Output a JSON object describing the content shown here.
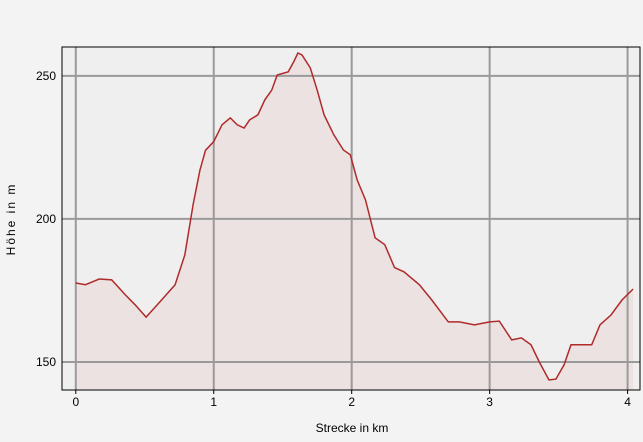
{
  "chart_data": {
    "type": "area",
    "x_label": "Strecke in km",
    "y_label": "Höhe in m",
    "x": [
      0,
      0.07,
      0.17,
      0.26,
      0.36,
      0.43,
      0.51,
      0.61,
      0.72,
      0.79,
      0.85,
      0.9,
      0.94,
      1.0,
      1.06,
      1.12,
      1.17,
      1.22,
      1.26,
      1.32,
      1.37,
      1.42,
      1.46,
      1.54,
      1.58,
      1.61,
      1.64,
      1.7,
      1.75,
      1.8,
      1.87,
      1.94,
      1.99,
      2.04,
      2.1,
      2.17,
      2.24,
      2.31,
      2.38,
      2.49,
      2.58,
      2.7,
      2.78,
      2.89,
      3.0,
      3.07,
      3.16,
      3.23,
      3.3,
      3.36,
      3.43,
      3.48,
      3.54,
      3.59,
      3.69,
      3.74,
      3.8,
      3.88,
      3.96,
      4.04
    ],
    "values": [
      177.6,
      177,
      179,
      178.7,
      173.4,
      170,
      165.7,
      171,
      177,
      187.4,
      205,
      217,
      224,
      227,
      232.9,
      235.3,
      232.9,
      231.8,
      234.6,
      236.4,
      241.6,
      245,
      250.3,
      251.4,
      255,
      258,
      257.3,
      252.8,
      245,
      236.4,
      229.4,
      224.1,
      222.4,
      213.6,
      206.6,
      193.4,
      191,
      183,
      181.5,
      177,
      171.7,
      164,
      164,
      163,
      164,
      164.3,
      157.7,
      158.4,
      156,
      150,
      143.7,
      144,
      149,
      156,
      156,
      156,
      163,
      166.4,
      171.7,
      175.5
    ],
    "color": "#b02a2a",
    "fill_color": "#ede2e2",
    "xlim": [
      -0.1,
      4.09
    ],
    "ylim": [
      140.2,
      260.1
    ],
    "xticks": [
      0,
      1,
      2,
      3,
      4
    ],
    "yticks": [
      150,
      200,
      250
    ],
    "grid": true
  }
}
